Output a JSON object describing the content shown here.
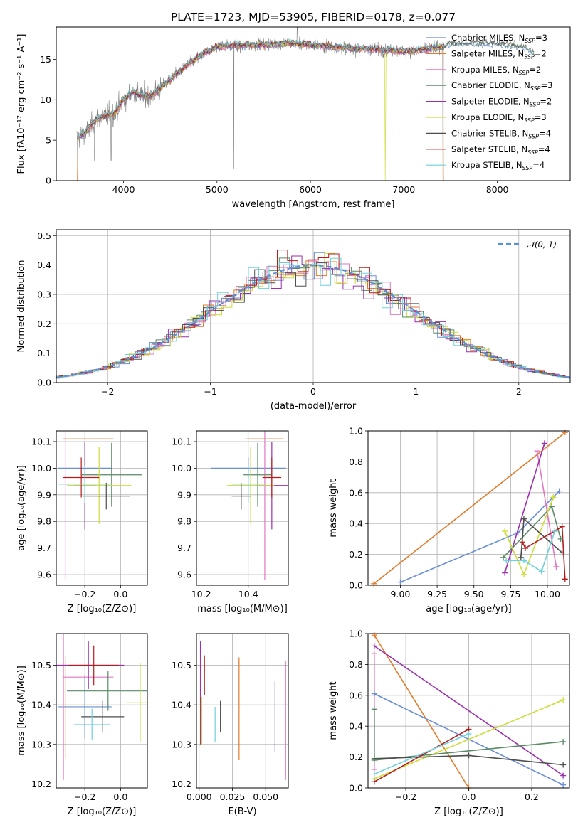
{
  "title": "PLATE=1723, MJD=53905, FIBERID=0178, z=0.077",
  "colors": [
    "#6b8fd6",
    "#e07b2a",
    "#e377c2",
    "#5a8a66",
    "#9b2fae",
    "#cddc39",
    "#4d4d4d",
    "#b71c1c",
    "#6fd1dc"
  ],
  "chart_data": [
    {
      "id": "spectrum",
      "type": "line",
      "xlabel": "wavelength [Angstrom, rest frame]",
      "ylabel": "Flux [fλ10⁻¹⁷ erg cm⁻² s⁻¹ A⁻¹]",
      "xlim": [
        3280,
        8780
      ],
      "ylim": [
        0,
        19
      ],
      "xticks": [
        4000,
        5000,
        6000,
        7000,
        8000
      ],
      "yticks": [
        0,
        5,
        10,
        15
      ],
      "grid": false,
      "legend_position": "top-right",
      "observed_spectrum_color": "#808080",
      "models": [
        {
          "name": "Chabrier MILES, N_SSP=3",
          "color": "#6b8fd6"
        },
        {
          "name": "Salpeter MILES, N_SSP=2",
          "color": "#e07b2a"
        },
        {
          "name": "Kroupa MILES, N_SSP=2",
          "color": "#e377c2"
        },
        {
          "name": "Chabrier ELODIE, N_SSP=3",
          "color": "#5a8a66"
        },
        {
          "name": "Salpeter ELODIE, N_SSP=2",
          "color": "#9b2fae"
        },
        {
          "name": "Kroupa ELODIE, N_SSP=3",
          "color": "#cddc39"
        },
        {
          "name": "Chabrier STELIB, N_SSP=4",
          "color": "#4d4d4d"
        },
        {
          "name": "Salpeter STELIB, N_SSP=4",
          "color": "#b71c1c"
        },
        {
          "name": "Kroupa STELIB, N_SSP=4",
          "color": "#6fd1dc"
        }
      ],
      "continuum_x": [
        3500,
        3600,
        3700,
        3800,
        3900,
        4000,
        4100,
        4200,
        4300,
        4400,
        4500,
        4700,
        4900,
        5000,
        5200,
        5400,
        5600,
        5800,
        6000,
        6200,
        6400,
        6600,
        6800,
        7000,
        7200,
        7400,
        7500,
        8000,
        8300,
        8500
      ],
      "continuum_y": [
        5.2,
        6.0,
        7.5,
        8.0,
        8.3,
        10.0,
        11.0,
        10.5,
        10.5,
        11.5,
        12.5,
        14.5,
        16.0,
        16.6,
        16.7,
        16.8,
        16.9,
        17.0,
        16.8,
        16.6,
        16.4,
        16.3,
        16.2,
        16.0,
        16.2,
        16.5,
        17.0,
        17.0,
        16.5,
        15.5
      ]
    },
    {
      "id": "residuals",
      "type": "bar",
      "xlabel": "(data-model)/error",
      "ylabel": "Normed distribution",
      "xlim": [
        -2.5,
        2.5
      ],
      "ylim": [
        0,
        0.52
      ],
      "xticks": [
        -2,
        -1,
        0,
        1,
        2
      ],
      "yticks": [
        0.0,
        0.1,
        0.2,
        0.3,
        0.4,
        0.5
      ],
      "grid": true,
      "legend_position": "top-right",
      "reference_curve": {
        "name": "𝒩(0, 1)",
        "mu": 0,
        "sigma": 1,
        "color": "#5b8fd6"
      },
      "bin_width": 0.1
    },
    {
      "id": "age-vs-Z",
      "type": "scatter",
      "xlabel": "Z [log₁₀(Z/Z⊙)]",
      "ylabel": "age  [log₁₀(age/yr)]",
      "xlim": [
        -0.36,
        0.15
      ],
      "ylim": [
        9.56,
        10.14
      ],
      "xticks": [
        -0.2,
        0.0
      ],
      "yticks": [
        9.6,
        9.7,
        9.8,
        9.9,
        10.0,
        10.1
      ],
      "grid": true,
      "errorbars": [
        {
          "x": -0.2,
          "xerr": 0.15,
          "y": 10.0,
          "yerr": 0.04,
          "color": "#6b8fd6"
        },
        {
          "x": -0.18,
          "xerr": 0.14,
          "y": 10.11,
          "yerr": 0.0,
          "color": "#e07b2a"
        },
        {
          "x": -0.31,
          "xerr": 0.0,
          "y": 9.93,
          "yerr": 0.35,
          "color": "#e377c2"
        },
        {
          "x": -0.05,
          "xerr": 0.17,
          "y": 9.975,
          "yerr": 0.12,
          "color": "#5a8a66"
        },
        {
          "x": -0.2,
          "xerr": 0.06,
          "y": 9.935,
          "yerr": 0.165,
          "color": "#9b2fae"
        },
        {
          "x": -0.12,
          "xerr": 0.18,
          "y": 9.935,
          "yerr": 0.145,
          "color": "#cddc39"
        },
        {
          "x": -0.08,
          "xerr": 0.13,
          "y": 9.895,
          "yerr": 0.05,
          "color": "#4d4d4d"
        },
        {
          "x": -0.22,
          "xerr": 0.1,
          "y": 9.965,
          "yerr": 0.075,
          "color": "#b71c1c"
        },
        {
          "x": -0.2,
          "xerr": 0.15,
          "y": 9.94,
          "yerr": 0.07,
          "color": "#6fd1dc"
        }
      ]
    },
    {
      "id": "age-vs-mass",
      "type": "scatter",
      "xlabel": "mass [log₁₀(M/M⊙)]",
      "ylabel": "",
      "xlim": [
        10.18,
        10.57
      ],
      "ylim": [
        9.56,
        10.14
      ],
      "xticks": [
        10.2,
        10.4
      ],
      "yticks": [
        9.6,
        9.7,
        9.8,
        9.9,
        10.0,
        10.1
      ],
      "grid": true,
      "errorbars": [
        {
          "x": 10.4,
          "xerr": 0.16,
          "y": 10.0,
          "yerr": 0.04,
          "color": "#6b8fd6"
        },
        {
          "x": 10.47,
          "xerr": 0.08,
          "y": 10.11,
          "yerr": 0.0,
          "color": "#e07b2a"
        },
        {
          "x": 10.47,
          "xerr": 0.0,
          "y": 9.93,
          "yerr": 0.35,
          "color": "#e377c2"
        },
        {
          "x": 10.44,
          "xerr": 0.06,
          "y": 9.975,
          "yerr": 0.12,
          "color": "#5a8a66"
        },
        {
          "x": 10.5,
          "xerr": 0.07,
          "y": 9.935,
          "yerr": 0.165,
          "color": "#9b2fae"
        },
        {
          "x": 10.41,
          "xerr": 0.1,
          "y": 9.935,
          "yerr": 0.145,
          "color": "#cddc39"
        },
        {
          "x": 10.37,
          "xerr": 0.04,
          "y": 9.895,
          "yerr": 0.05,
          "color": "#4d4d4d"
        },
        {
          "x": 10.5,
          "xerr": 0.04,
          "y": 9.965,
          "yerr": 0.075,
          "color": "#b71c1c"
        },
        {
          "x": 10.4,
          "xerr": 0.07,
          "y": 9.94,
          "yerr": 0.07,
          "color": "#6fd1dc"
        }
      ]
    },
    {
      "id": "weight-vs-age",
      "type": "line",
      "xlabel": "age  [log₁₀(age/yr)]",
      "ylabel": "mass weight",
      "xlim": [
        8.78,
        10.15
      ],
      "ylim": [
        0.0,
        1.0
      ],
      "xticks": [
        9.0,
        9.25,
        9.5,
        9.75,
        10.0
      ],
      "yticks": [
        0.0,
        0.2,
        0.4,
        0.6,
        0.8,
        1.0
      ],
      "grid": true,
      "series": [
        {
          "color": "#e07b2a",
          "x": [
            8.82,
            10.12
          ],
          "y": [
            0.01,
            0.99
          ]
        },
        {
          "color": "#6b8fd6",
          "x": [
            9.0,
            9.8,
            10.08
          ],
          "y": [
            0.02,
            0.34,
            0.61
          ]
        },
        {
          "color": "#e377c2",
          "x": [
            9.93,
            10.06
          ],
          "y": [
            0.87,
            0.12
          ]
        },
        {
          "color": "#9b2fae",
          "x": [
            9.71,
            9.98
          ],
          "y": [
            0.08,
            0.92
          ]
        },
        {
          "color": "#5a8a66",
          "x": [
            9.7,
            10.03,
            10.09
          ],
          "y": [
            0.18,
            0.51,
            0.3
          ]
        },
        {
          "color": "#cddc39",
          "x": [
            9.71,
            9.84,
            10.04
          ],
          "y": [
            0.35,
            0.07,
            0.57
          ]
        },
        {
          "color": "#4d4d4d",
          "x": [
            9.82,
            9.84,
            10.1
          ],
          "y": [
            0.18,
            0.43,
            0.21
          ]
        },
        {
          "color": "#b71c1c",
          "x": [
            9.83,
            9.85,
            10.1,
            10.12
          ],
          "y": [
            0.28,
            0.24,
            0.38,
            0.04
          ]
        },
        {
          "color": "#6fd1dc",
          "x": [
            9.72,
            9.84,
            9.96,
            10.05
          ],
          "y": [
            0.16,
            0.16,
            0.09,
            0.35
          ]
        }
      ]
    },
    {
      "id": "mass-vs-Z",
      "type": "scatter",
      "xlabel": "Z [log₁₀(Z/Z⊙)]",
      "ylabel": "mass [log₁₀(M/M⊙)]",
      "xlim": [
        -0.36,
        0.15
      ],
      "ylim": [
        10.19,
        10.58
      ],
      "xticks": [
        -0.2,
        0.0
      ],
      "yticks": [
        10.2,
        10.3,
        10.4,
        10.5
      ],
      "grid": true,
      "errorbars": [
        {
          "x": -0.2,
          "xerr": 0.15,
          "y": 10.395,
          "yerr": 0.08,
          "color": "#6b8fd6"
        },
        {
          "x": -0.31,
          "xerr": 0.0,
          "y": 10.395,
          "yerr": 0.13,
          "color": "#e07b2a"
        },
        {
          "x": -0.18,
          "xerr": 0.14,
          "y": 10.47,
          "yerr": 0.0,
          "color": "#e377c2"
        },
        {
          "x": -0.32,
          "xerr": 0.0,
          "y": 10.47,
          "yerr": 0.26,
          "color": "#e377c2"
        },
        {
          "x": -0.07,
          "xerr": 0.23,
          "y": 10.435,
          "yerr": 0.05,
          "color": "#5a8a66"
        },
        {
          "x": -0.18,
          "xerr": 0.2,
          "y": 10.5,
          "yerr": 0.06,
          "color": "#9b2fae"
        },
        {
          "x": 0.11,
          "xerr": 0.08,
          "y": 10.405,
          "yerr": 0.1,
          "color": "#cddc39"
        },
        {
          "x": -0.1,
          "xerr": 0.12,
          "y": 10.37,
          "yerr": 0.04,
          "color": "#4d4d4d"
        },
        {
          "x": -0.15,
          "xerr": 0.14,
          "y": 10.5,
          "yerr": 0.05,
          "color": "#b71c1c"
        },
        {
          "x": -0.16,
          "xerr": 0.1,
          "y": 10.35,
          "yerr": 0.04,
          "color": "#6fd1dc"
        }
      ]
    },
    {
      "id": "mass-vs-ebv",
      "type": "scatter",
      "xlabel": "E(B-V)",
      "ylabel": "",
      "xlim": [
        -0.002,
        0.067
      ],
      "ylim": [
        10.19,
        10.58
      ],
      "xticks": [
        0.0,
        0.025,
        0.05
      ],
      "xtick_labels": [
        "0.000",
        "0.025",
        "0.050"
      ],
      "yticks": [
        10.2,
        10.3,
        10.4,
        10.5
      ],
      "grid": true,
      "errorbars": [
        {
          "x": 0.057,
          "xerr": 0.0,
          "y": 10.37,
          "yerr": 0.09,
          "color": "#6b8fd6"
        },
        {
          "x": 0.03,
          "xerr": 0.0,
          "y": 10.39,
          "yerr": 0.13,
          "color": "#e07b2a"
        },
        {
          "x": 0.065,
          "xerr": 0.0,
          "y": 10.36,
          "yerr": 0.15,
          "color": "#e377c2"
        },
        {
          "x": 0.001,
          "xerr": 0.0,
          "y": 10.43,
          "yerr": 0.13,
          "color": "#9b2fae"
        },
        {
          "x": 0.002,
          "xerr": 0.0,
          "y": 10.36,
          "yerr": 0.06,
          "color": "#cddc39"
        },
        {
          "x": 0.016,
          "xerr": 0.0,
          "y": 10.37,
          "yerr": 0.04,
          "color": "#4d4d4d"
        },
        {
          "x": 0.004,
          "xerr": 0.0,
          "y": 10.475,
          "yerr": 0.05,
          "color": "#b71c1c"
        },
        {
          "x": 0.012,
          "xerr": 0.0,
          "y": 10.35,
          "yerr": 0.045,
          "color": "#6fd1dc"
        }
      ]
    },
    {
      "id": "weight-vs-Z",
      "type": "line",
      "xlabel": "Z [log₁₀(Z/Z⊙)]",
      "ylabel": "mass weight",
      "xlim": [
        -0.32,
        0.32
      ],
      "ylim": [
        0.0,
        1.0
      ],
      "xticks": [
        -0.2,
        0.0,
        0.2
      ],
      "yticks": [
        0.0,
        0.2,
        0.4,
        0.6,
        0.8,
        1.0
      ],
      "grid": true,
      "series": [
        {
          "color": "#e07b2a",
          "x": [
            -0.3,
            0.0
          ],
          "y": [
            0.99,
            0.0
          ]
        },
        {
          "color": "#9b2fae",
          "x": [
            -0.3,
            0.3
          ],
          "y": [
            0.92,
            0.08
          ]
        },
        {
          "color": "#6b8fd6",
          "x": [
            -0.3,
            0.3
          ],
          "y": [
            0.61,
            0.02
          ]
        },
        {
          "color": "#cddc39",
          "x": [
            -0.3,
            0.3
          ],
          "y": [
            0.06,
            0.57
          ]
        },
        {
          "color": "#5a8a66",
          "x": [
            -0.3,
            0.3
          ],
          "y": [
            0.18,
            0.3
          ]
        },
        {
          "color": "#4d4d4d",
          "x": [
            -0.3,
            0.0,
            0.3
          ],
          "y": [
            0.19,
            0.21,
            0.15
          ]
        },
        {
          "color": "#b71c1c",
          "x": [
            -0.3,
            0.0
          ],
          "y": [
            0.04,
            0.38
          ]
        },
        {
          "color": "#6fd1dc",
          "x": [
            -0.3,
            0.0
          ],
          "y": [
            0.09,
            0.35
          ]
        },
        {
          "color": "#e377c2",
          "x": [
            -0.3,
            -0.3
          ],
          "y": [
            0.87,
            0.12
          ]
        },
        {
          "color": "#5a8a66",
          "x": [
            -0.3,
            -0.3
          ],
          "y": [
            0.51,
            0.18
          ]
        }
      ]
    }
  ]
}
